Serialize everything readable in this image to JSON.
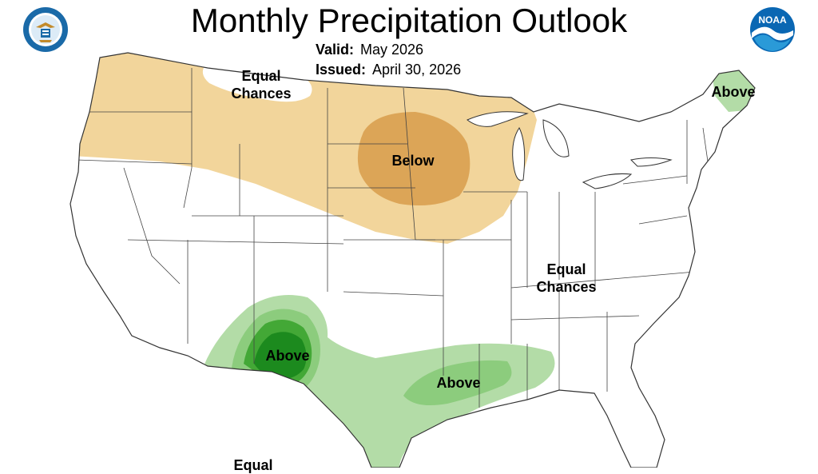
{
  "header": {
    "title": "Monthly Precipitation Outlook",
    "valid_label": "Valid:",
    "valid_value": "May 2026",
    "issued_label": "Issued:",
    "issued_value": "April 30, 2026"
  },
  "logos": {
    "left": "Department of Commerce seal",
    "right": "NOAA logo"
  },
  "map_labels": {
    "nw_equal": "Equal Chances",
    "below": "Below",
    "ne_above": "Above",
    "east_equal": "Equal Chances",
    "sw_above": "Above",
    "gulf_above": "Above",
    "bottom_equal": "Equal"
  },
  "colors": {
    "below_light": "#f2d59b",
    "below_mid": "#dca557",
    "above_light": "#b3dca7",
    "above_mid": "#8ccc7d",
    "above_dark": "#43a836",
    "above_darkest": "#1c8a1e",
    "noaa_blue": "#0a67b3",
    "doc_blue": "#1a6aa8"
  }
}
